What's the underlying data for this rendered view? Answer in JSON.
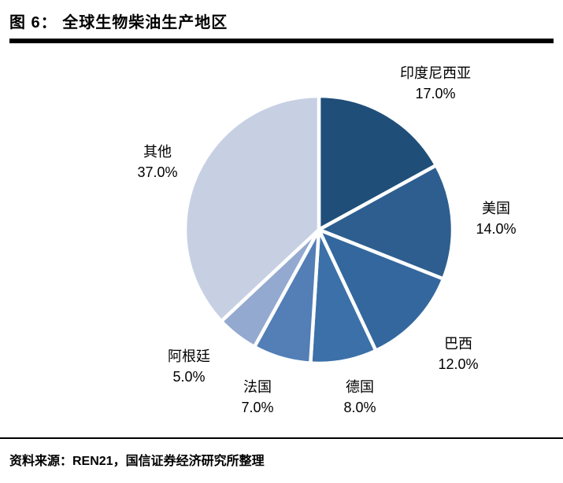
{
  "header": {
    "title": "图 6：  全球生物柴油生产地区"
  },
  "footer": {
    "source": "资料来源：REN21，国信证券经济研究所整理"
  },
  "chart_data": {
    "type": "pie",
    "title": "全球生物柴油生产地区",
    "start_angle_deg": -90,
    "direction": "clockwise",
    "legend_position": "none",
    "slice_border_color": "#ffffff",
    "slices": [
      {
        "label": "印度尼西亚",
        "value": 17.0,
        "pct_label": "17.0%",
        "color": "#1F4E79"
      },
      {
        "label": "美国",
        "value": 14.0,
        "pct_label": "14.0%",
        "color": "#2E5E8F"
      },
      {
        "label": "巴西",
        "value": 12.0,
        "pct_label": "12.0%",
        "color": "#33679E"
      },
      {
        "label": "德国",
        "value": 8.0,
        "pct_label": "8.0%",
        "color": "#3B70A9"
      },
      {
        "label": "法国",
        "value": 7.0,
        "pct_label": "7.0%",
        "color": "#537EB6"
      },
      {
        "label": "阿根廷",
        "value": 5.0,
        "pct_label": "5.0%",
        "color": "#93A9CF"
      },
      {
        "label": "其他",
        "value": 37.0,
        "pct_label": "37.0%",
        "color": "#C7D0E3"
      }
    ]
  }
}
